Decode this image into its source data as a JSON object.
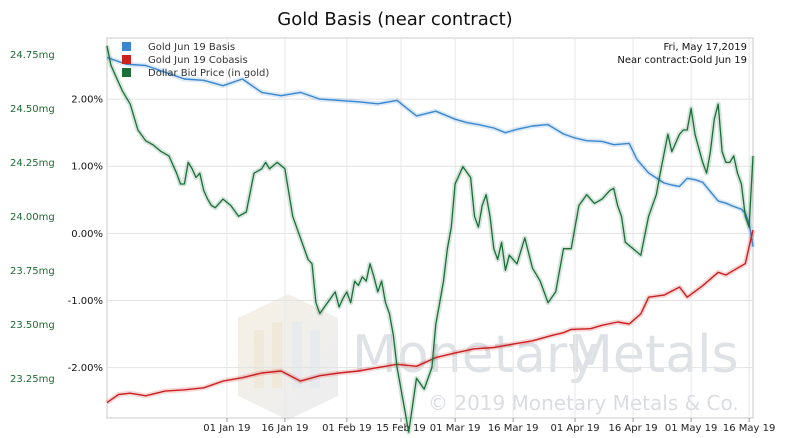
{
  "chart_data": {
    "type": "line",
    "title": "Gold Basis (near contract)",
    "info": {
      "date": "Fri, May 17,2019",
      "contract": "Near contract:Gold Jun 19"
    },
    "watermark": {
      "brand_part1": "Monetary",
      "brand_part2": "Metals",
      "copyright": "© 2019 Monetary Metals & Co."
    },
    "x_ticks": [
      "01 Jan 19",
      "16 Jan 19",
      "01 Feb 19",
      "15 Feb 19",
      "01 Mar 19",
      "16 Mar 19",
      "01 Apr 19",
      "16 Apr 19",
      "01 May 19",
      "16 May 19"
    ],
    "x_tick_days": [
      31,
      46,
      62,
      76,
      90,
      105,
      121,
      136,
      151,
      166
    ],
    "x_range_days": [
      0,
      167
    ],
    "left_axis": {
      "ticks": [
        "24.75mg",
        "24.50mg",
        "24.25mg",
        "24.00mg",
        "23.75mg",
        "23.50mg",
        "23.25mg"
      ],
      "values": [
        24.75,
        24.5,
        24.25,
        24.0,
        23.75,
        23.5,
        23.25
      ],
      "range": [
        23.066,
        24.826
      ]
    },
    "right_axis": {
      "ticks": [
        "2.00%",
        "1.00%",
        "0.00%",
        "-1.00%",
        "-2.00%"
      ],
      "values": [
        2.0,
        1.0,
        0.0,
        -1.0,
        -2.0
      ],
      "range": [
        -2.75,
        2.91
      ]
    },
    "colors": {
      "basis": "#3a87cf",
      "cobasis": "#cc1f1f",
      "dollar": "#1a6e38",
      "axis_left": "#1e6b34"
    },
    "series": [
      {
        "name": "Gold Jun 19 Basis",
        "axis": "right",
        "x": [
          0,
          5,
          10,
          15,
          20,
          25,
          30,
          35,
          40,
          45,
          50,
          55,
          60,
          65,
          70,
          75,
          80,
          85,
          90,
          93,
          96,
          100,
          103,
          106,
          110,
          114,
          118,
          121,
          124,
          128,
          131,
          135,
          137,
          140,
          144,
          146,
          148,
          150,
          152,
          154,
          156,
          158,
          160,
          162,
          164,
          165,
          166,
          167
        ],
        "y": [
          2.62,
          2.52,
          2.5,
          2.4,
          2.3,
          2.28,
          2.2,
          2.3,
          2.1,
          2.05,
          2.1,
          2.0,
          1.98,
          1.96,
          1.93,
          1.98,
          1.75,
          1.82,
          1.7,
          1.65,
          1.62,
          1.57,
          1.5,
          1.55,
          1.6,
          1.62,
          1.48,
          1.42,
          1.38,
          1.37,
          1.32,
          1.34,
          1.1,
          0.9,
          0.75,
          0.72,
          0.7,
          0.82,
          0.8,
          0.76,
          0.62,
          0.48,
          0.45,
          0.4,
          0.36,
          0.3,
          0.15,
          -0.2
        ]
      },
      {
        "name": "Gold Jun 19 Cobasis",
        "axis": "right",
        "x": [
          0,
          3,
          6,
          10,
          15,
          20,
          25,
          30,
          35,
          40,
          45,
          50,
          55,
          60,
          65,
          70,
          75,
          80,
          85,
          90,
          95,
          100,
          105,
          110,
          115,
          118,
          120,
          125,
          128,
          132,
          135,
          138,
          140,
          144,
          148,
          150,
          154,
          158,
          160,
          162,
          165,
          166,
          167
        ],
        "y": [
          -2.52,
          -2.4,
          -2.38,
          -2.42,
          -2.35,
          -2.33,
          -2.3,
          -2.2,
          -2.15,
          -2.08,
          -2.05,
          -2.2,
          -2.12,
          -2.08,
          -2.05,
          -2.0,
          -1.95,
          -1.98,
          -1.85,
          -1.78,
          -1.72,
          -1.7,
          -1.65,
          -1.6,
          -1.52,
          -1.48,
          -1.43,
          -1.42,
          -1.37,
          -1.32,
          -1.35,
          -1.2,
          -0.95,
          -0.92,
          -0.8,
          -0.95,
          -0.78,
          -0.58,
          -0.62,
          -0.55,
          -0.45,
          -0.2,
          0.05
        ]
      },
      {
        "name": "Dollar Bid Price (in gold)",
        "axis": "left",
        "x": [
          0,
          1,
          2,
          3,
          4,
          5,
          6,
          8,
          10,
          12,
          14,
          16,
          18,
          19,
          20,
          21,
          22,
          23,
          24,
          25,
          26,
          27,
          28,
          30,
          32,
          34,
          36,
          38,
          40,
          41,
          42,
          44,
          46,
          48,
          50,
          52,
          53,
          54,
          55,
          57,
          59,
          60,
          61,
          62,
          63,
          64,
          65,
          66,
          67,
          68,
          69,
          70,
          71,
          72,
          73,
          74,
          75,
          76,
          77,
          78,
          80,
          82,
          84,
          85,
          86,
          87,
          88,
          89,
          90,
          92,
          94,
          95,
          96,
          97,
          98,
          99,
          100,
          101,
          102,
          103,
          104,
          106,
          108,
          110,
          112,
          113,
          114,
          116,
          118,
          120,
          122,
          124,
          126,
          128,
          130,
          131,
          132,
          133,
          134,
          136,
          138,
          140,
          142,
          143,
          145,
          146,
          148,
          149,
          150,
          151,
          152,
          154,
          155,
          156,
          157,
          158,
          159,
          160,
          161,
          162,
          163,
          164,
          165,
          166,
          167
        ],
        "y": [
          24.79,
          24.7,
          24.66,
          24.62,
          24.58,
          24.55,
          24.52,
          24.4,
          24.35,
          24.33,
          24.3,
          24.28,
          24.2,
          24.15,
          24.15,
          24.25,
          24.22,
          24.18,
          24.2,
          24.12,
          24.08,
          24.05,
          24.04,
          24.08,
          24.05,
          24.0,
          24.02,
          24.2,
          24.22,
          24.25,
          24.22,
          24.25,
          24.22,
          24.0,
          23.9,
          23.8,
          23.78,
          23.6,
          23.55,
          23.6,
          23.65,
          23.58,
          23.62,
          23.65,
          23.6,
          23.7,
          23.68,
          23.72,
          23.7,
          23.78,
          23.72,
          23.65,
          23.7,
          23.6,
          23.55,
          23.45,
          23.3,
          23.2,
          23.1,
          23.0,
          23.25,
          23.2,
          23.3,
          23.5,
          23.6,
          23.7,
          23.85,
          23.95,
          24.15,
          24.23,
          24.18,
          24.0,
          23.95,
          24.05,
          24.1,
          24.0,
          23.85,
          23.8,
          23.88,
          23.75,
          23.82,
          23.78,
          23.9,
          23.76,
          23.7,
          23.65,
          23.6,
          23.65,
          23.85,
          23.85,
          24.05,
          24.1,
          24.06,
          24.08,
          24.12,
          24.13,
          24.05,
          24.0,
          23.88,
          23.85,
          23.82,
          24.0,
          24.1,
          24.2,
          24.38,
          24.3,
          24.38,
          24.4,
          24.4,
          24.5,
          24.38,
          24.25,
          24.2,
          24.3,
          24.45,
          24.52,
          24.3,
          24.25,
          24.25,
          24.28,
          24.2,
          24.15,
          24.0,
          23.95,
          24.28
        ]
      }
    ]
  }
}
